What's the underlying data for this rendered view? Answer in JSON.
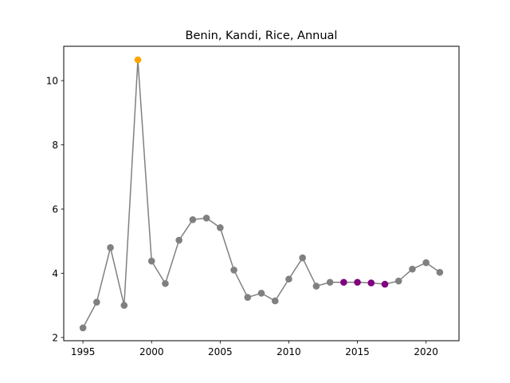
{
  "chart_data": {
    "type": "line",
    "title": "Benin, Kandi, Rice, Annual",
    "xlabel": "",
    "ylabel": "",
    "xlim": [
      1993.6,
      2022.4
    ],
    "ylim": [
      1.9,
      11.07
    ],
    "x_ticks": [
      1995,
      2000,
      2005,
      2010,
      2015,
      2020
    ],
    "y_ticks": [
      2,
      4,
      6,
      8,
      10
    ],
    "grid": false,
    "line_color": "#808080",
    "series": [
      {
        "x": [
          1995,
          1996,
          1997,
          1998,
          1999,
          2000,
          2001,
          2002,
          2003,
          2004,
          2005,
          2006,
          2007,
          2008,
          2009,
          2010,
          2011,
          2012,
          2013,
          2014,
          2015,
          2016,
          2017,
          2018,
          2019,
          2020,
          2021
        ],
        "values": [
          2.3,
          3.1,
          4.8,
          3.0,
          10.65,
          4.38,
          3.68,
          5.03,
          5.67,
          5.72,
          5.42,
          4.1,
          3.25,
          3.38,
          3.14,
          3.82,
          4.48,
          3.6,
          3.72,
          3.72,
          3.72,
          3.7,
          3.66,
          3.76,
          4.13,
          4.33,
          4.03
        ],
        "point_colors": [
          "#808080",
          "#808080",
          "#808080",
          "#808080",
          "#FFA500",
          "#808080",
          "#808080",
          "#808080",
          "#808080",
          "#808080",
          "#808080",
          "#808080",
          "#808080",
          "#808080",
          "#808080",
          "#808080",
          "#808080",
          "#808080",
          "#808080",
          "#800080",
          "#800080",
          "#800080",
          "#800080",
          "#808080",
          "#808080",
          "#808080",
          "#808080"
        ]
      }
    ]
  }
}
